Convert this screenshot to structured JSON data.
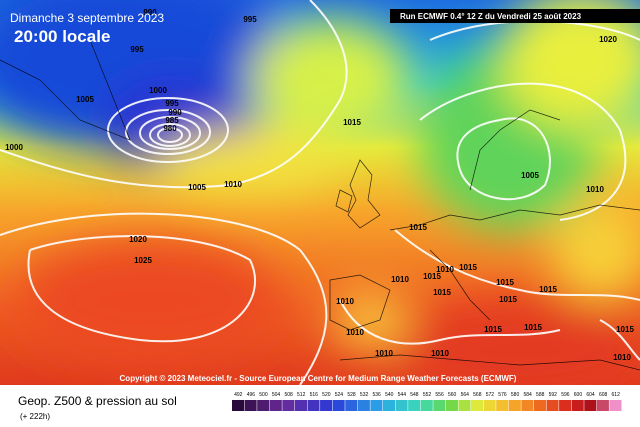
{
  "header": {
    "date": "Dimanche 3 septembre 2023",
    "time": "20:00 locale",
    "run": "Run ECMWF 0.4° 12 Z du Vendredi 25 août 2023"
  },
  "copyright": "Copyright © 2023 Meteociel.fr - Source European Centre for Medium Range Weather Forecasts (ECMWF)",
  "footer": {
    "title": "Geop. Z500 & pression au sol",
    "lead": "(+ 222h)"
  },
  "scale": {
    "labels": [
      "492",
      "496",
      "500",
      "504",
      "508",
      "512",
      "516",
      "520",
      "524",
      "528",
      "532",
      "536",
      "540",
      "544",
      "548",
      "552",
      "556",
      "560",
      "564",
      "568",
      "572",
      "576",
      "580",
      "584",
      "588",
      "592",
      "596",
      "600",
      "604",
      "608",
      "612"
    ]
  },
  "isobars": {
    "labels": [
      "990",
      "995",
      "995",
      "1005",
      "1000",
      "995",
      "990",
      "985",
      "980",
      "1000",
      "1005",
      "1010",
      "1015",
      "1005",
      "1010",
      "1020",
      "1020",
      "1025",
      "1015",
      "1015",
      "1010",
      "1015",
      "1015",
      "1010",
      "1010",
      "1010",
      "1015",
      "1015",
      "1015",
      "1015",
      "1015",
      "1010",
      "1010",
      "1015",
      "1010"
    ]
  }
}
